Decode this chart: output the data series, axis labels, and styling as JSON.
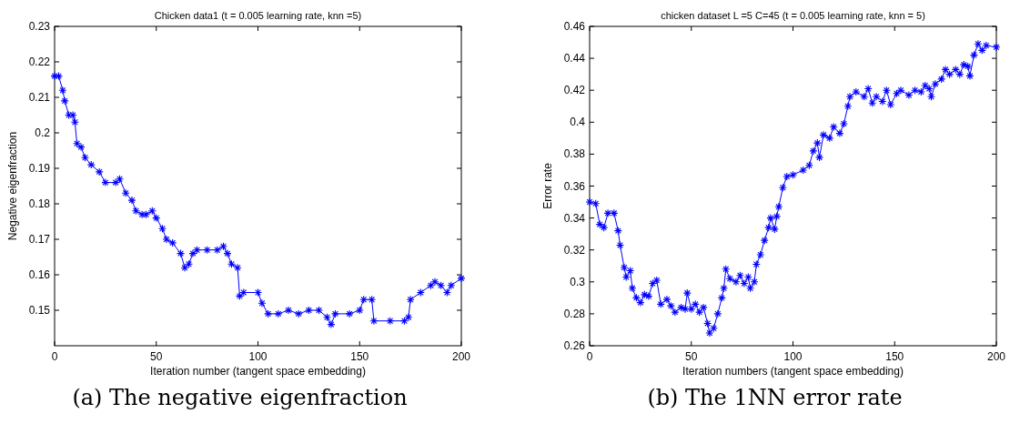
{
  "chart_data": [
    {
      "type": "line",
      "title": "Chicken data1 (t = 0.005 learning rate, knn =5)",
      "xlabel": "Iteration number (tangent space embedding)",
      "ylabel": "Negative eigenfraction",
      "annotations": [
        "(a) The negative eigenfraction"
      ],
      "xlim": [
        0,
        200
      ],
      "xticks": [
        0,
        50,
        100,
        150,
        200
      ],
      "ylim": [
        0.14,
        0.23
      ],
      "yticks": [
        0.15,
        0.16,
        0.17,
        0.18,
        0.19,
        0.2,
        0.21,
        0.22,
        0.23
      ],
      "marker": "cross",
      "x": [
        0,
        2,
        4,
        5,
        7,
        9,
        10,
        11,
        13,
        15,
        18,
        22,
        25,
        30,
        32,
        35,
        38,
        40,
        43,
        45,
        48,
        50,
        53,
        55,
        58,
        62,
        64,
        66,
        68,
        70,
        75,
        80,
        83,
        85,
        87,
        90,
        91,
        93,
        100,
        102,
        105,
        110,
        115,
        120,
        125,
        130,
        134,
        136,
        138,
        145,
        150,
        152,
        156,
        157,
        165,
        172,
        174,
        175,
        180,
        185,
        187,
        190,
        193,
        195,
        200
      ],
      "series": [
        {
          "color": "#0000ff",
          "values": [
            0.216,
            0.216,
            0.212,
            0.209,
            0.205,
            0.205,
            0.203,
            0.197,
            0.196,
            0.193,
            0.191,
            0.189,
            0.186,
            0.186,
            0.187,
            0.183,
            0.181,
            0.178,
            0.177,
            0.177,
            0.178,
            0.176,
            0.173,
            0.17,
            0.169,
            0.166,
            0.162,
            0.163,
            0.166,
            0.167,
            0.167,
            0.167,
            0.168,
            0.166,
            0.163,
            0.162,
            0.154,
            0.155,
            0.155,
            0.152,
            0.149,
            0.149,
            0.15,
            0.149,
            0.15,
            0.15,
            0.148,
            0.146,
            0.149,
            0.149,
            0.15,
            0.153,
            0.153,
            0.147,
            0.147,
            0.147,
            0.148,
            0.153,
            0.155,
            0.157,
            0.158,
            0.157,
            0.155,
            0.157,
            0.159
          ]
        }
      ]
    },
    {
      "type": "line",
      "title": "chicken dataset L =5 C=45 (t = 0.005 learning rate, knn = 5)",
      "xlabel": "Iteration numbers (tangent space embedding)",
      "ylabel": "Error rate",
      "annotations": [
        "(b) The 1NN error rate"
      ],
      "xlim": [
        0,
        200
      ],
      "xticks": [
        0,
        50,
        100,
        150,
        200
      ],
      "ylim": [
        0.26,
        0.46
      ],
      "yticks": [
        0.26,
        0.28,
        0.3,
        0.32,
        0.34,
        0.36,
        0.38,
        0.4,
        0.42,
        0.44,
        0.46
      ],
      "marker": "cross",
      "x": [
        0,
        3,
        5,
        7,
        9,
        12,
        14,
        15,
        17,
        18,
        20,
        21,
        23,
        25,
        27,
        29,
        31,
        33,
        35,
        38,
        40,
        42,
        45,
        47,
        48,
        50,
        52,
        54,
        56,
        58,
        59,
        61,
        63,
        65,
        66,
        67,
        69,
        72,
        74,
        76,
        78,
        79,
        81,
        82,
        84,
        86,
        88,
        89,
        91,
        92,
        93,
        95,
        97,
        100,
        105,
        108,
        110,
        112,
        113,
        115,
        118,
        120,
        123,
        125,
        127,
        128,
        131,
        135,
        137,
        139,
        141,
        144,
        146,
        148,
        151,
        153,
        157,
        160,
        163,
        165,
        167,
        168,
        170,
        173,
        175,
        177,
        180,
        182,
        184,
        186,
        187,
        189,
        191,
        193,
        195,
        200
      ],
      "series": [
        {
          "color": "#0000ff",
          "values": [
            0.35,
            0.349,
            0.336,
            0.334,
            0.343,
            0.343,
            0.332,
            0.323,
            0.309,
            0.303,
            0.307,
            0.296,
            0.29,
            0.287,
            0.292,
            0.291,
            0.299,
            0.301,
            0.286,
            0.289,
            0.285,
            0.281,
            0.284,
            0.283,
            0.293,
            0.283,
            0.286,
            0.281,
            0.284,
            0.274,
            0.268,
            0.271,
            0.28,
            0.29,
            0.296,
            0.308,
            0.302,
            0.3,
            0.304,
            0.299,
            0.303,
            0.296,
            0.3,
            0.311,
            0.317,
            0.326,
            0.334,
            0.34,
            0.333,
            0.341,
            0.347,
            0.359,
            0.366,
            0.367,
            0.37,
            0.373,
            0.382,
            0.387,
            0.378,
            0.392,
            0.39,
            0.397,
            0.393,
            0.399,
            0.41,
            0.416,
            0.419,
            0.416,
            0.421,
            0.412,
            0.416,
            0.413,
            0.42,
            0.411,
            0.418,
            0.42,
            0.417,
            0.42,
            0.419,
            0.423,
            0.421,
            0.416,
            0.424,
            0.427,
            0.433,
            0.43,
            0.433,
            0.43,
            0.436,
            0.435,
            0.429,
            0.442,
            0.449,
            0.445,
            0.448,
            0.447
          ]
        }
      ]
    }
  ]
}
